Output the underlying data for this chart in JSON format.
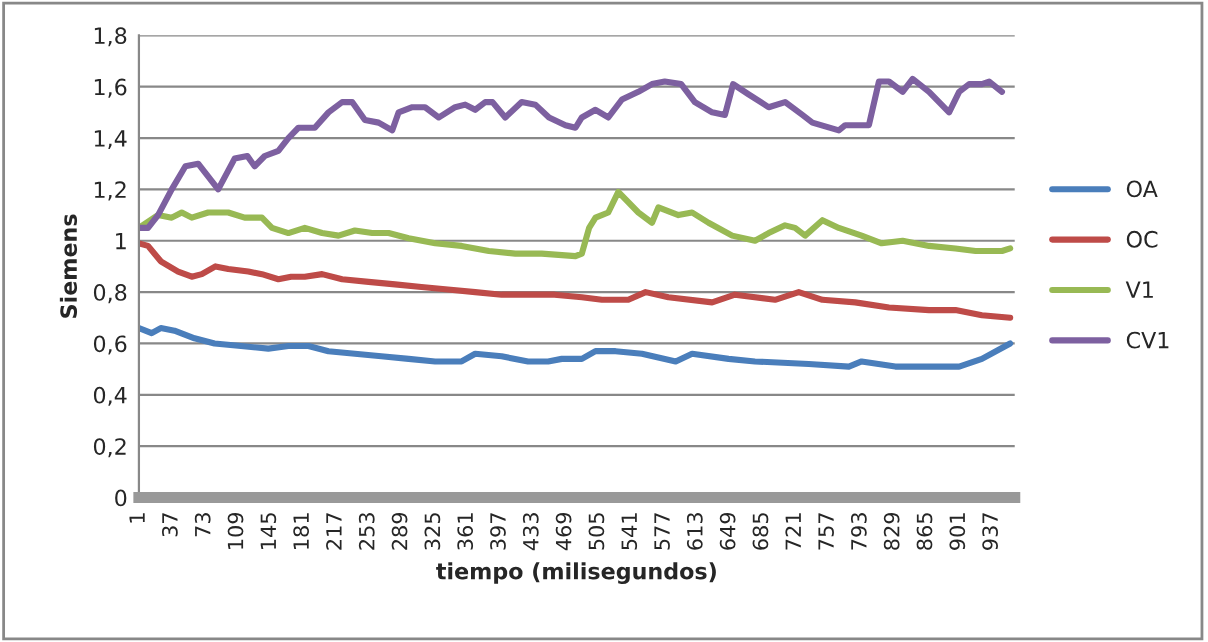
{
  "chart_data": {
    "type": "line",
    "xlabel": "tiempo (milisegundos)",
    "ylabel": "Siemens",
    "xlim": [
      1,
      962
    ],
    "xticks": [
      1,
      37,
      73,
      109,
      145,
      181,
      217,
      253,
      289,
      325,
      361,
      397,
      433,
      469,
      505,
      541,
      577,
      613,
      649,
      685,
      721,
      757,
      793,
      829,
      865,
      901,
      937
    ],
    "ylim": [
      0,
      1.8
    ],
    "yticks": [
      {
        "value": 0,
        "label": "0"
      },
      {
        "value": 0.2,
        "label": "0,2"
      },
      {
        "value": 0.4,
        "label": "0,4"
      },
      {
        "value": 0.6,
        "label": "0,6"
      },
      {
        "value": 0.8,
        "label": "0,8"
      },
      {
        "value": 1,
        "label": "1"
      },
      {
        "value": 1.2,
        "label": "1,2"
      },
      {
        "value": 1.4,
        "label": "1,4"
      },
      {
        "value": 1.6,
        "label": "1,6"
      },
      {
        "value": 1.8,
        "label": "1,8"
      }
    ],
    "grid": "y",
    "legend": "right",
    "marker": "none",
    "line_style": "solid",
    "series": [
      {
        "name": "OA",
        "color": "#4a7ebb",
        "x": [
          1,
          15,
          25,
          40,
          62,
          84,
          113,
          143,
          165,
          187,
          209,
          238,
          267,
          297,
          326,
          355,
          370,
          399,
          428,
          450,
          465,
          487,
          502,
          524,
          553,
          590,
          608,
          648,
          677,
          736,
          780,
          794,
          831,
          868,
          901,
          926,
          957
        ],
        "values": [
          0.66,
          0.64,
          0.66,
          0.65,
          0.62,
          0.6,
          0.59,
          0.58,
          0.59,
          0.59,
          0.57,
          0.56,
          0.55,
          0.54,
          0.53,
          0.53,
          0.56,
          0.55,
          0.53,
          0.53,
          0.54,
          0.54,
          0.57,
          0.57,
          0.56,
          0.53,
          0.56,
          0.54,
          0.53,
          0.52,
          0.51,
          0.53,
          0.51,
          0.51,
          0.51,
          0.54,
          0.6
        ]
      },
      {
        "name": "OC",
        "color": "#be4b48",
        "x": [
          1,
          11,
          25,
          44,
          59,
          70,
          85,
          99,
          121,
          136,
          154,
          168,
          183,
          202,
          224,
          253,
          282,
          311,
          340,
          370,
          399,
          428,
          457,
          487,
          509,
          538,
          557,
          582,
          630,
          655,
          699,
          725,
          751,
          787,
          824,
          868,
          897,
          926,
          957
        ],
        "values": [
          0.99,
          0.98,
          0.92,
          0.88,
          0.86,
          0.87,
          0.9,
          0.89,
          0.88,
          0.87,
          0.85,
          0.86,
          0.86,
          0.87,
          0.85,
          0.84,
          0.83,
          0.82,
          0.81,
          0.8,
          0.79,
          0.79,
          0.79,
          0.78,
          0.77,
          0.77,
          0.8,
          0.78,
          0.76,
          0.79,
          0.77,
          0.8,
          0.77,
          0.76,
          0.74,
          0.73,
          0.73,
          0.71,
          0.7
        ]
      },
      {
        "name": "V1",
        "color": "#98b954",
        "x": [
          1,
          22,
          37,
          48,
          59,
          77,
          99,
          117,
          136,
          147,
          165,
          183,
          202,
          220,
          238,
          257,
          275,
          297,
          326,
          355,
          385,
          414,
          443,
          480,
          487,
          495,
          502,
          516,
          527,
          549,
          564,
          571,
          593,
          608,
          626,
          652,
          677,
          692,
          710,
          721,
          732,
          751,
          769,
          794,
          816,
          839,
          868,
          897,
          919,
          948,
          957
        ],
        "values": [
          1.05,
          1.1,
          1.09,
          1.11,
          1.09,
          1.11,
          1.11,
          1.09,
          1.09,
          1.05,
          1.03,
          1.05,
          1.03,
          1.02,
          1.04,
          1.03,
          1.03,
          1.01,
          0.99,
          0.98,
          0.96,
          0.95,
          0.95,
          0.94,
          0.95,
          1.05,
          1.09,
          1.11,
          1.19,
          1.11,
          1.07,
          1.13,
          1.1,
          1.11,
          1.07,
          1.02,
          1.0,
          1.03,
          1.06,
          1.05,
          1.02,
          1.08,
          1.05,
          1.02,
          0.99,
          1.0,
          0.98,
          0.97,
          0.96,
          0.96,
          0.97
        ]
      },
      {
        "name": "CV1",
        "color": "#7d60a0",
        "x": [
          1,
          11,
          22,
          37,
          52,
          66,
          88,
          106,
          120,
          128,
          139,
          154,
          165,
          176,
          194,
          209,
          224,
          235,
          249,
          264,
          279,
          286,
          301,
          315,
          330,
          348,
          359,
          370,
          381,
          389,
          403,
          421,
          436,
          451,
          469,
          480,
          487,
          502,
          516,
          531,
          549,
          564,
          578,
          596,
          611,
          630,
          644,
          653,
          670,
          692,
          710,
          729,
          740,
          769,
          776,
          802,
          813,
          824,
          839,
          850,
          868,
          890,
          901,
          912,
          926,
          934,
          948
        ],
        "values": [
          1.05,
          1.05,
          1.1,
          1.2,
          1.29,
          1.3,
          1.2,
          1.32,
          1.33,
          1.29,
          1.33,
          1.35,
          1.4,
          1.44,
          1.44,
          1.5,
          1.54,
          1.54,
          1.47,
          1.46,
          1.43,
          1.5,
          1.52,
          1.52,
          1.48,
          1.52,
          1.53,
          1.51,
          1.54,
          1.54,
          1.48,
          1.54,
          1.53,
          1.48,
          1.45,
          1.44,
          1.48,
          1.51,
          1.48,
          1.55,
          1.58,
          1.61,
          1.62,
          1.61,
          1.54,
          1.5,
          1.49,
          1.61,
          1.57,
          1.52,
          1.54,
          1.49,
          1.46,
          1.43,
          1.45,
          1.45,
          1.62,
          1.62,
          1.58,
          1.63,
          1.58,
          1.5,
          1.58,
          1.61,
          1.61,
          1.62,
          1.58
        ]
      }
    ]
  }
}
